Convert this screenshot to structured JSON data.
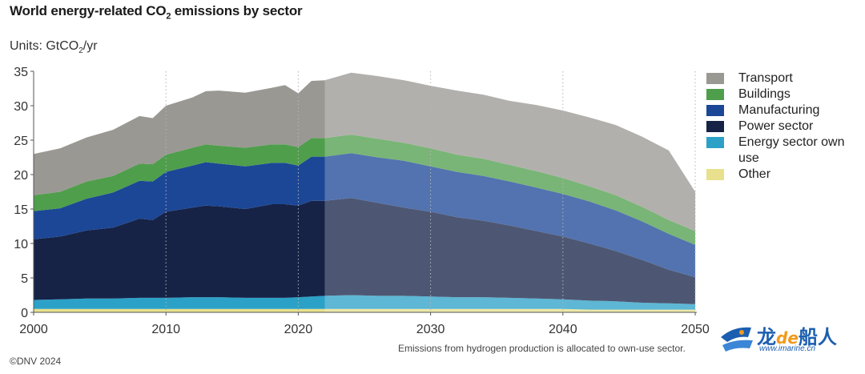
{
  "header": {
    "title_main": "World energy-related CO",
    "title_sub": "2",
    "title_tail": " emissions by sector",
    "units_main": "Units: GtCO",
    "units_sub": "2",
    "units_tail": "/yr"
  },
  "chart_data": {
    "type": "area",
    "stacked": true,
    "xlim": [
      2000,
      2050
    ],
    "ylim": [
      0,
      35
    ],
    "xticks": [
      "2000",
      "2010",
      "2020",
      "2030",
      "2040",
      "2050"
    ],
    "yticks": [
      "0",
      "5",
      "10",
      "15",
      "20",
      "25",
      "30",
      "35"
    ],
    "forecast_start": 2022,
    "grid": "vertical dotted",
    "legend_position": "right",
    "x": [
      2000,
      2002,
      2004,
      2006,
      2008,
      2009,
      2010,
      2012,
      2013,
      2014,
      2016,
      2018,
      2019,
      2020,
      2021,
      2022,
      2024,
      2026,
      2028,
      2030,
      2032,
      2034,
      2036,
      2038,
      2040,
      2042,
      2044,
      2046,
      2048,
      2050
    ],
    "series": [
      {
        "name": "Other",
        "color": "#e8e08c",
        "values": [
          0.5,
          0.5,
          0.5,
          0.5,
          0.5,
          0.5,
          0.5,
          0.5,
          0.5,
          0.5,
          0.5,
          0.5,
          0.5,
          0.5,
          0.5,
          0.5,
          0.5,
          0.5,
          0.5,
          0.5,
          0.5,
          0.5,
          0.5,
          0.5,
          0.5,
          0.4,
          0.4,
          0.4,
          0.4,
          0.4
        ]
      },
      {
        "name": "Energy sector own use",
        "color": "#2ba1c8",
        "values": [
          1.3,
          1.4,
          1.5,
          1.5,
          1.6,
          1.6,
          1.6,
          1.7,
          1.7,
          1.7,
          1.6,
          1.6,
          1.6,
          1.7,
          1.8,
          1.9,
          2.0,
          1.9,
          1.9,
          1.8,
          1.7,
          1.7,
          1.6,
          1.5,
          1.4,
          1.3,
          1.2,
          1.0,
          0.9,
          0.8
        ]
      },
      {
        "name": "Power sector",
        "color": "#162347",
        "values": [
          8.8,
          9.1,
          9.9,
          10.3,
          11.5,
          11.3,
          12.5,
          13.0,
          13.3,
          13.2,
          12.9,
          13.6,
          13.6,
          13.3,
          13.9,
          13.8,
          14.1,
          13.5,
          12.8,
          12.3,
          11.6,
          11.1,
          10.5,
          9.8,
          9.1,
          8.3,
          7.3,
          6.2,
          4.9,
          3.9
        ]
      },
      {
        "name": "Manufacturing",
        "color": "#1c4796",
        "values": [
          4.1,
          4.1,
          4.6,
          5.1,
          5.5,
          5.6,
          5.8,
          6.1,
          6.3,
          6.2,
          6.2,
          6.0,
          6.0,
          5.8,
          6.4,
          6.4,
          6.5,
          6.6,
          6.8,
          6.6,
          6.6,
          6.5,
          6.4,
          6.3,
          6.2,
          6.1,
          5.9,
          5.6,
          5.2,
          4.7
        ]
      },
      {
        "name": "Buildings",
        "color": "#4f9e4c",
        "values": [
          2.3,
          2.4,
          2.5,
          2.4,
          2.5,
          2.5,
          2.5,
          2.6,
          2.6,
          2.6,
          2.7,
          2.7,
          2.7,
          2.7,
          2.7,
          2.7,
          2.7,
          2.7,
          2.6,
          2.6,
          2.5,
          2.5,
          2.4,
          2.4,
          2.3,
          2.2,
          2.2,
          2.1,
          2.0,
          2.0
        ]
      },
      {
        "name": "Transport",
        "color": "#9a9893",
        "values": [
          6.0,
          6.3,
          6.4,
          6.7,
          6.9,
          6.7,
          7.1,
          7.3,
          7.7,
          8.0,
          8.0,
          8.2,
          8.6,
          7.8,
          8.3,
          8.4,
          9.0,
          9.1,
          9.1,
          9.1,
          9.3,
          9.3,
          9.3,
          9.6,
          9.8,
          10.0,
          10.2,
          10.2,
          10.1,
          5.7
        ]
      }
    ]
  },
  "legend": [
    {
      "label": "Transport",
      "color": "#9a9893"
    },
    {
      "label": "Buildings",
      "color": "#4f9e4c"
    },
    {
      "label": "Manufacturing",
      "color": "#1c4796"
    },
    {
      "label": "Power sector",
      "color": "#162347"
    },
    {
      "label": "Energy sector own use",
      "color": "#2ba1c8"
    },
    {
      "label": "Other",
      "color": "#e8e08c"
    }
  ],
  "footer": {
    "copyright": "©DNV 2024",
    "note": "Emissions from hydrogen production is allocated to own-use sector."
  },
  "watermark": {
    "text_a": "龙",
    "text_de": "de",
    "text_b": "船人",
    "url": "www.imarine.cn"
  }
}
